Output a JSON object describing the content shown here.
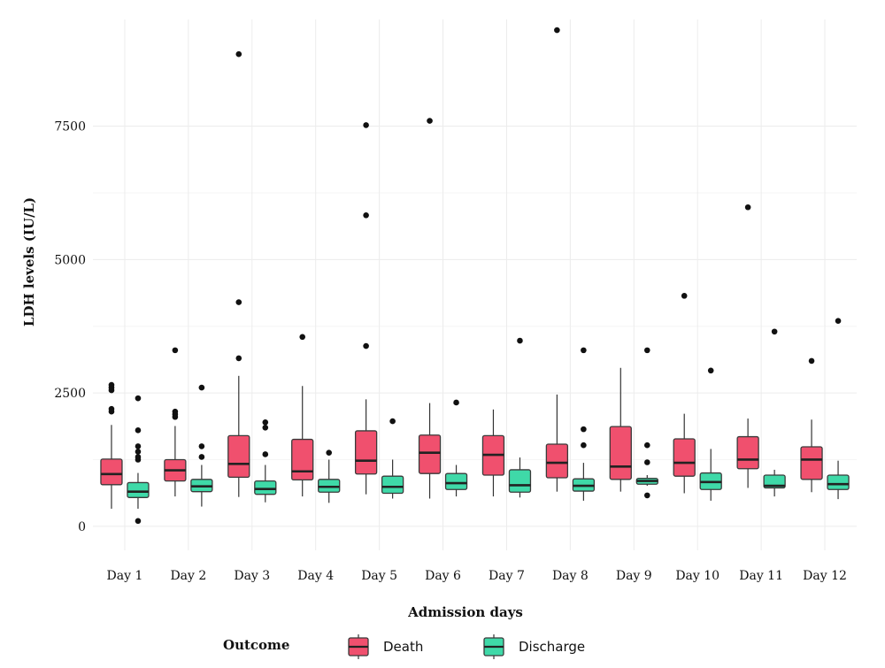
{
  "chart_data": {
    "type": "box",
    "xlabel": "Admission days",
    "ylabel": "LDH levels (IU/L)",
    "ylim": [
      -450,
      9500
    ],
    "yticks": [
      0,
      2500,
      5000,
      7500
    ],
    "grid": true,
    "legend": {
      "title": "Outcome",
      "position": "bottom"
    },
    "categories": [
      "Day 1",
      "Day 2",
      "Day 3",
      "Day 4",
      "Day 5",
      "Day 6",
      "Day 7",
      "Day 8",
      "Day 9",
      "Day 10",
      "Day 11",
      "Day 12"
    ],
    "series": [
      {
        "name": "Death",
        "color": "#f0506e",
        "boxes": [
          {
            "min": 330,
            "q1": 780,
            "median": 980,
            "q3": 1260,
            "max": 1900,
            "outliers": [
              2150,
              2200,
              2550,
              2600,
              2650
            ]
          },
          {
            "min": 560,
            "q1": 850,
            "median": 1050,
            "q3": 1250,
            "max": 1880,
            "outliers": [
              2050,
              2100,
              2150,
              3300
            ]
          },
          {
            "min": 550,
            "q1": 920,
            "median": 1170,
            "q3": 1700,
            "max": 2820,
            "outliers": [
              3150,
              4200,
              8850
            ]
          },
          {
            "min": 560,
            "q1": 870,
            "median": 1030,
            "q3": 1630,
            "max": 2630,
            "outliers": [
              3550
            ]
          },
          {
            "min": 600,
            "q1": 980,
            "median": 1230,
            "q3": 1790,
            "max": 2380,
            "outliers": [
              3380,
              5830,
              7520
            ]
          },
          {
            "min": 520,
            "q1": 990,
            "median": 1380,
            "q3": 1710,
            "max": 2310,
            "outliers": [
              7600
            ]
          },
          {
            "min": 560,
            "q1": 960,
            "median": 1340,
            "q3": 1700,
            "max": 2190,
            "outliers": []
          },
          {
            "min": 650,
            "q1": 910,
            "median": 1190,
            "q3": 1540,
            "max": 2470,
            "outliers": [
              9300
            ]
          },
          {
            "min": 650,
            "q1": 880,
            "median": 1120,
            "q3": 1870,
            "max": 2970,
            "outliers": []
          },
          {
            "min": 620,
            "q1": 940,
            "median": 1190,
            "q3": 1640,
            "max": 2110,
            "outliers": [
              4320
            ]
          },
          {
            "min": 720,
            "q1": 1080,
            "median": 1250,
            "q3": 1680,
            "max": 2020,
            "outliers": [
              5980
            ]
          },
          {
            "min": 640,
            "q1": 880,
            "median": 1250,
            "q3": 1490,
            "max": 2000,
            "outliers": [
              3100
            ]
          }
        ]
      },
      {
        "name": "Discharge",
        "color": "#3fd9a8",
        "boxes": [
          {
            "min": 330,
            "q1": 540,
            "median": 650,
            "q3": 820,
            "max": 1000,
            "outliers": [
              100,
              1250,
              1300,
              1400,
              1500,
              1800,
              2400
            ]
          },
          {
            "min": 370,
            "q1": 650,
            "median": 750,
            "q3": 880,
            "max": 1150,
            "outliers": [
              1300,
              1500,
              2600
            ]
          },
          {
            "min": 450,
            "q1": 600,
            "median": 700,
            "q3": 850,
            "max": 1150,
            "outliers": [
              1350,
              1850,
              1950
            ]
          },
          {
            "min": 440,
            "q1": 640,
            "median": 740,
            "q3": 880,
            "max": 1250,
            "outliers": [
              1380
            ]
          },
          {
            "min": 520,
            "q1": 620,
            "median": 740,
            "q3": 940,
            "max": 1250,
            "outliers": [
              1970
            ]
          },
          {
            "min": 560,
            "q1": 690,
            "median": 810,
            "q3": 990,
            "max": 1150,
            "outliers": [
              2320
            ]
          },
          {
            "min": 540,
            "q1": 640,
            "median": 770,
            "q3": 1060,
            "max": 1290,
            "outliers": [
              3480
            ]
          },
          {
            "min": 480,
            "q1": 660,
            "median": 760,
            "q3": 890,
            "max": 1190,
            "outliers": [
              1520,
              1820,
              3300
            ]
          },
          {
            "min": 760,
            "q1": 790,
            "median": 850,
            "q3": 900,
            "max": 960,
            "outliers": [
              580,
              1200,
              1520,
              3300
            ]
          },
          {
            "min": 480,
            "q1": 690,
            "median": 830,
            "q3": 1000,
            "max": 1450,
            "outliers": [
              2920
            ]
          },
          {
            "min": 560,
            "q1": 720,
            "median": 760,
            "q3": 960,
            "max": 1060,
            "outliers": [
              3650
            ]
          },
          {
            "min": 510,
            "q1": 690,
            "median": 790,
            "q3": 960,
            "max": 1230,
            "outliers": [
              3850
            ]
          }
        ]
      }
    ]
  }
}
